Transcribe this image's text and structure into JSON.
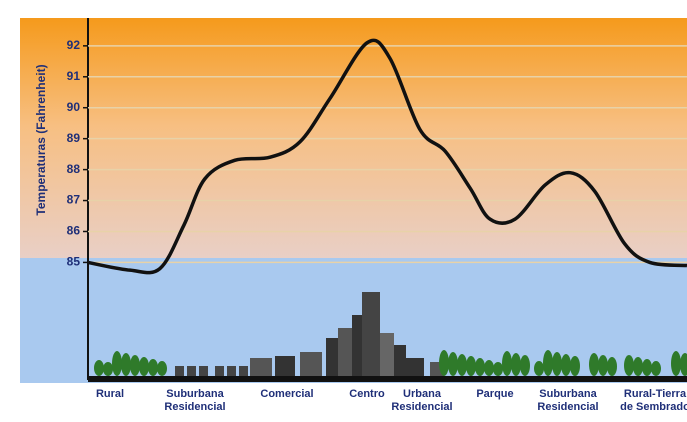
{
  "chart_data": {
    "type": "line",
    "y_label": "Temperaturas (Fahrenheit)",
    "categories": [
      "Rural",
      "Suburbana Residencial",
      "Comercial",
      "Centro",
      "Urbana Residencial",
      "Parque",
      "Suburbana Residencial",
      "Rural-Tierra de Sembrado"
    ],
    "x": [
      0,
      7,
      12,
      16,
      19.5,
      24.5,
      30.4,
      35.4,
      40.4,
      46.6,
      50.4,
      55.4,
      59.6,
      63.8,
      67.1,
      71.3,
      76.3,
      80.5,
      84.6,
      89.6,
      93.8,
      100
    ],
    "values": [
      85,
      84.75,
      84.8,
      86.2,
      87.7,
      88.3,
      88.4,
      88.9,
      90.3,
      92.1,
      91.6,
      89.3,
      88.6,
      87.4,
      86.4,
      86.4,
      87.5,
      87.9,
      87.3,
      85.6,
      85.0,
      84.9
    ],
    "color": "#111111",
    "xlim": [
      0,
      100
    ],
    "ylim": [
      81.2,
      92.9
    ],
    "yticks": [
      85,
      86,
      87,
      88,
      89,
      90,
      91,
      92
    ],
    "grid": true
  }
}
